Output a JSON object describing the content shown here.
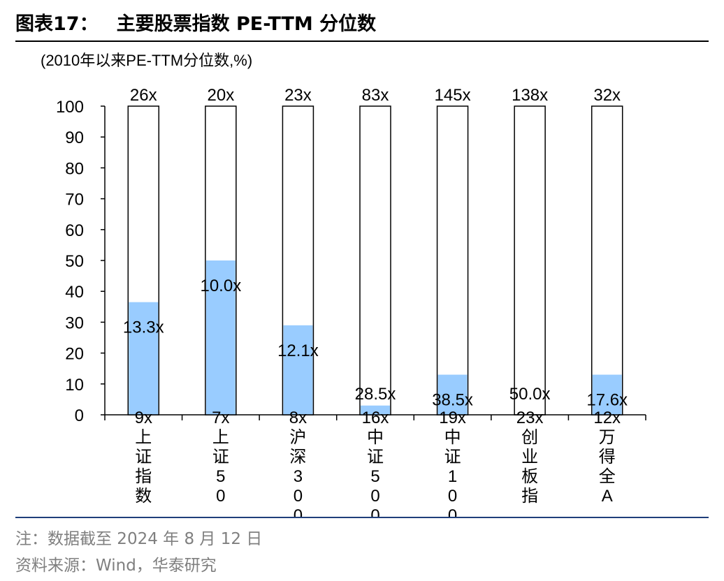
{
  "figure": {
    "title_prefix": "图表17：",
    "title": "主要股票指数 PE-TTM 分位数",
    "note": "注：数据截至 2024 年 8 月 12 日",
    "source": "资料来源：Wind，华泰研究"
  },
  "colors": {
    "fill": "#99ccff",
    "outline": "#000000",
    "rule": "#1f3e7a",
    "note": "#7f7f7f"
  },
  "chart_data": {
    "type": "bar",
    "ylabel": "(2010年以来PE-TTM分位数,%)",
    "ylim": [
      0,
      100
    ],
    "yticks": [
      "0",
      "10",
      "20",
      "30",
      "40",
      "50",
      "60",
      "70",
      "80",
      "90",
      "100"
    ],
    "categories": [
      "上证指数",
      "上证50",
      "沪深300",
      "中证500",
      "中证1000",
      "创业板指",
      "万得全A"
    ],
    "values": [
      36.5,
      50.0,
      29.0,
      3.0,
      13.0,
      0.0,
      13.0
    ],
    "current_pe_labels": [
      "13.3x",
      "10.0x",
      "12.1x",
      "28.5x",
      "38.5x",
      "50.0x",
      "17.6x"
    ],
    "max_pe_labels": [
      "26x",
      "20x",
      "23x",
      "83x",
      "145x",
      "138x",
      "32x"
    ],
    "min_pe_labels": [
      "9x",
      "7x",
      "8x",
      "16x",
      "19x",
      "23x",
      "12x"
    ],
    "grid": false
  }
}
